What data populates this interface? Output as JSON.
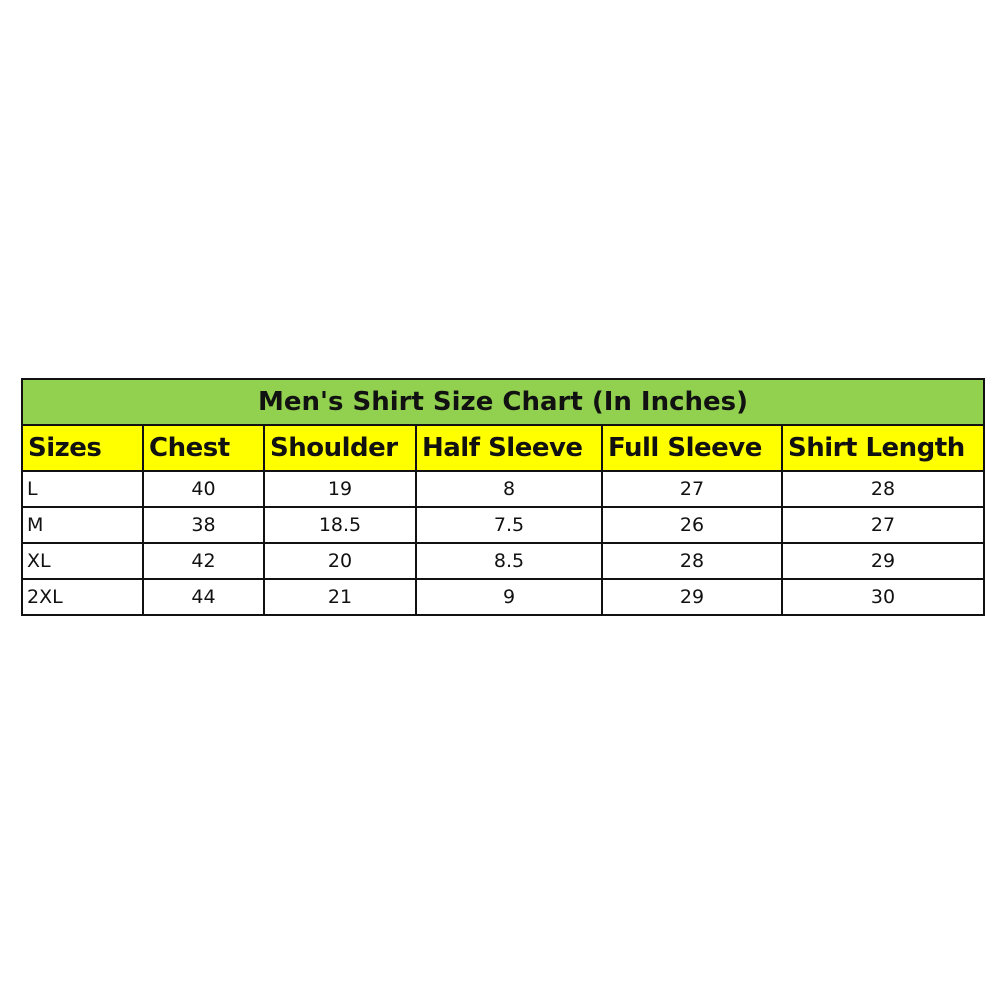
{
  "title": "Men's Shirt Size Chart (In Inches)",
  "columns": [
    "Sizes",
    "Chest",
    "Shoulder",
    "Half Sleeve",
    "Full Sleeve",
    "Shirt Length"
  ],
  "rows": [
    [
      "L",
      "40",
      "19",
      "8",
      "27",
      "28"
    ],
    [
      "M",
      "38",
      "18.5",
      "7.5",
      "26",
      "27"
    ],
    [
      "XL",
      "42",
      "20",
      "8.5",
      "28",
      "29"
    ],
    [
      "2XL",
      "44",
      "21",
      "9",
      "29",
      "30"
    ]
  ],
  "colors": {
    "title_bg": "#92d050",
    "header_bg": "#ffff00"
  }
}
